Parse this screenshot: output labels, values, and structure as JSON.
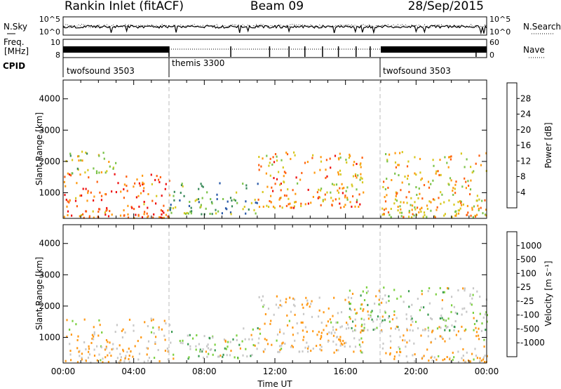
{
  "header": {
    "station": "Rankin Inlet (fitACF)",
    "beam": "Beam 09",
    "date": "28/Sep/2015"
  },
  "noise_panel": {
    "left_label": "N.Sky",
    "right_label": "N.Search",
    "left_ticks": [
      "10^5",
      "10^0"
    ],
    "right_ticks": [
      "10^5",
      "10^0"
    ]
  },
  "freq_panel": {
    "left_label_top": "Freq.",
    "left_label_bottom": "[MHz]",
    "left_ticks": [
      "10",
      "8"
    ],
    "right_label": "Nave",
    "right_ticks": [
      "60",
      "0"
    ]
  },
  "cpid": {
    "label": "CPID",
    "segments": [
      {
        "name": "twofsound 3503",
        "start_hour": 0,
        "end_hour": 6
      },
      {
        "name": "themis 3300",
        "start_hour": 6,
        "end_hour": 18
      },
      {
        "name": "twofsound 3503",
        "start_hour": 18,
        "end_hour": 24
      }
    ]
  },
  "colors": {
    "power": [
      "#1a1aff",
      "#2a5aa8",
      "#3a8a5a",
      "#7cc34a",
      "#d8c820",
      "#ff9a10",
      "#ff6010",
      "#ee1010"
    ],
    "velocity": [
      "#ee1010",
      "#ff5a10",
      "#ff9a18",
      "#c8c8c8",
      "#c8c8c8",
      "#7cd040",
      "#3a9a50",
      "#2a5aa8",
      "#1a2aa0"
    ]
  },
  "chart_data": [
    {
      "type": "heatmap",
      "title": "",
      "xlabel": "",
      "ylabel": "Slant Range [km]",
      "xlim": [
        0,
        24
      ],
      "ylim": [
        180,
        4600
      ],
      "x_ticks": [
        "00:00",
        "04:00",
        "08:00",
        "12:00",
        "16:00",
        "20:00",
        "00:00"
      ],
      "y_ticks": [
        1000,
        2000,
        3000,
        4000
      ],
      "colorbar": {
        "label": "Power [dB]",
        "ticks": [
          4,
          8,
          12,
          16,
          20,
          24,
          28
        ],
        "range": [
          0,
          32
        ]
      },
      "regions": [
        {
          "x": [
            0,
            6
          ],
          "y": [
            180,
            1600
          ],
          "value": 26
        },
        {
          "x": [
            0,
            3
          ],
          "y": [
            1600,
            2300
          ],
          "value": 16
        },
        {
          "x": [
            6,
            11
          ],
          "y": [
            300,
            1300
          ],
          "value": 12
        },
        {
          "x": [
            11,
            17
          ],
          "y": [
            500,
            2300
          ],
          "value": 22
        },
        {
          "x": [
            18,
            24
          ],
          "y": [
            200,
            2300
          ],
          "value": 20
        }
      ]
    },
    {
      "type": "heatmap",
      "title": "",
      "xlabel": "Time UT",
      "ylabel": "Slant Range [km]",
      "xlim": [
        0,
        24
      ],
      "ylim": [
        180,
        4600
      ],
      "x_ticks": [
        "00:00",
        "04:00",
        "08:00",
        "12:00",
        "16:00",
        "20:00",
        "00:00"
      ],
      "y_ticks": [
        1000,
        2000,
        3000,
        4000
      ],
      "colorbar": {
        "label": "Velocity [m s⁻¹]",
        "ticks": [
          1000,
          500,
          100,
          25,
          -25,
          -100,
          -500,
          -1000
        ]
      },
      "regions": [
        {
          "x": [
            0,
            6
          ],
          "y": [
            180,
            1600
          ],
          "value": -100
        },
        {
          "x": [
            6,
            11
          ],
          "y": [
            300,
            1300
          ],
          "value": 0
        },
        {
          "x": [
            11,
            17
          ],
          "y": [
            500,
            2300
          ],
          "value": -100
        },
        {
          "x": [
            16,
            24
          ],
          "y": [
            1200,
            2600
          ],
          "value": 0
        },
        {
          "x": [
            18,
            24
          ],
          "y": [
            200,
            1200
          ],
          "value": -100
        }
      ]
    }
  ]
}
